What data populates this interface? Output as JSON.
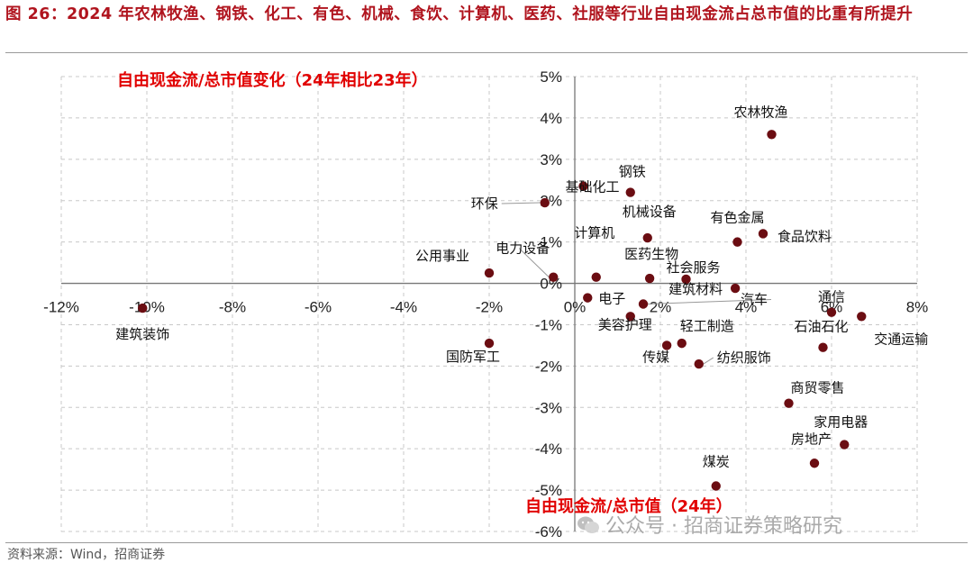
{
  "figure": {
    "title": "图 26：2024 年农林牧渔、钢铁、化工、有色、机械、食饮、计算机、医药、社服等行业自由现金流占总市值的比重有所提升",
    "source": "资料来源：Wind，招商证券",
    "watermark": "公众号 · 招商证券策略研究"
  },
  "colors": {
    "title": "#b0141e",
    "axis_title": "#e10000",
    "point": "#6b0d12",
    "grid": "#c8c8c8"
  },
  "chart_data": {
    "type": "scatter",
    "title": "",
    "ylabel": "自由现金流/总市值变化（24年相比23年）",
    "xlabel": "自由现金流/总市值（24年）",
    "xlim": [
      -12,
      8
    ],
    "ylim": [
      -6,
      5
    ],
    "x_ticks": [
      -12,
      -10,
      -8,
      -6,
      -4,
      -2,
      0,
      2,
      4,
      6,
      8
    ],
    "y_ticks": [
      -6,
      -5,
      -4,
      -3,
      -2,
      -1,
      0,
      1,
      2,
      3,
      4,
      5
    ],
    "tick_format": "percent",
    "grid": true,
    "points": [
      {
        "label": "农林牧渔",
        "x": 4.6,
        "y": 3.6
      },
      {
        "label": "钢铁",
        "x": 1.3,
        "y": 2.2
      },
      {
        "label": "基础化工",
        "x": 0.2,
        "y": 2.35
      },
      {
        "label": "环保",
        "x": -0.7,
        "y": 1.95
      },
      {
        "label": "机械设备",
        "x": 1.7,
        "y": 1.1
      },
      {
        "label": "有色金属",
        "x": 3.8,
        "y": 1.0
      },
      {
        "label": "食品饮料",
        "x": 4.4,
        "y": 1.2
      },
      {
        "label": "计算机",
        "x": 0.5,
        "y": 0.15
      },
      {
        "label": "医药生物",
        "x": 1.75,
        "y": 0.12
      },
      {
        "label": "社会服务",
        "x": 2.6,
        "y": 0.1
      },
      {
        "label": "公用事业",
        "x": -2.0,
        "y": 0.25
      },
      {
        "label": "电力设备",
        "x": -0.5,
        "y": 0.15
      },
      {
        "label": "建筑材料",
        "x": 3.75,
        "y": -0.12
      },
      {
        "label": "电子",
        "x": 0.3,
        "y": -0.35
      },
      {
        "label": "通信",
        "x": 6.0,
        "y": -0.7
      },
      {
        "label": "汽车",
        "x": 1.6,
        "y": -0.5
      },
      {
        "label": "美容护理",
        "x": 1.3,
        "y": -0.8
      },
      {
        "label": "轻工制造",
        "x": 2.5,
        "y": -1.45
      },
      {
        "label": "石油石化",
        "x": 5.8,
        "y": -1.55
      },
      {
        "label": "交通运输",
        "x": 6.7,
        "y": -0.8
      },
      {
        "label": "传媒",
        "x": 2.15,
        "y": -1.5
      },
      {
        "label": "纺织服饰",
        "x": 2.9,
        "y": -1.95
      },
      {
        "label": "建筑装饰",
        "x": -10.1,
        "y": -0.6
      },
      {
        "label": "国防军工",
        "x": -2.0,
        "y": -1.45
      },
      {
        "label": "商贸零售",
        "x": 5.0,
        "y": -2.9
      },
      {
        "label": "家用电器",
        "x": 6.3,
        "y": -3.9
      },
      {
        "label": "房地产",
        "x": 5.6,
        "y": -4.35
      },
      {
        "label": "煤炭",
        "x": 3.3,
        "y": -4.9
      }
    ]
  }
}
